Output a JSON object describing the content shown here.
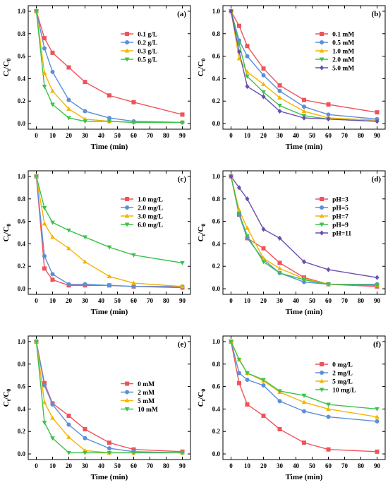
{
  "chart_data": [
    {
      "panel_label": "(a)",
      "type": "line",
      "xlabel": "Time (min)",
      "ylabel_main": "C",
      "ylabel_sub1": "t",
      "ylabel_sep": "/C",
      "ylabel_sub2": "0",
      "xlim": [
        -5,
        95
      ],
      "ylim": [
        -0.05,
        1.05
      ],
      "xticks": [
        0,
        10,
        20,
        30,
        40,
        50,
        60,
        70,
        80,
        90
      ],
      "yticks": [
        0.0,
        0.2,
        0.4,
        0.6,
        0.8,
        1.0
      ],
      "legend": "top-right",
      "x": [
        0,
        5,
        10,
        20,
        30,
        45,
        60,
        90
      ],
      "series": [
        {
          "name": "0.1 g/L",
          "color": "#f0525a",
          "marker": "square",
          "values": [
            1.0,
            0.76,
            0.63,
            0.5,
            0.37,
            0.25,
            0.19,
            0.08
          ]
        },
        {
          "name": "0.2 g/L",
          "color": "#5b8fd8",
          "marker": "circle",
          "values": [
            1.0,
            0.67,
            0.46,
            0.21,
            0.11,
            0.05,
            0.02,
            0.01
          ]
        },
        {
          "name": "0.3 g/L",
          "color": "#f5b400",
          "marker": "triangle-up",
          "values": [
            1.0,
            0.45,
            0.29,
            0.13,
            0.04,
            0.02,
            0.01,
            0.01
          ]
        },
        {
          "name": "0.5 g/L",
          "color": "#3cc24a",
          "marker": "triangle-down",
          "values": [
            1.0,
            0.33,
            0.17,
            0.05,
            0.02,
            0.02,
            0.01,
            0.01
          ]
        }
      ]
    },
    {
      "panel_label": "(b)",
      "type": "line",
      "xlabel": "Time (min)",
      "ylabel_main": "C",
      "ylabel_sub1": "t",
      "ylabel_sep": "/C",
      "ylabel_sub2": "0",
      "xlim": [
        -5,
        95
      ],
      "ylim": [
        -0.05,
        1.05
      ],
      "xticks": [
        0,
        10,
        20,
        30,
        40,
        50,
        60,
        70,
        80,
        90
      ],
      "yticks": [
        0.0,
        0.2,
        0.4,
        0.6,
        0.8,
        1.0
      ],
      "legend": "top-right",
      "x": [
        0,
        5,
        10,
        20,
        30,
        45,
        60,
        90
      ],
      "series": [
        {
          "name": "0.1 mM",
          "color": "#f0525a",
          "marker": "square",
          "values": [
            1.0,
            0.87,
            0.69,
            0.49,
            0.34,
            0.21,
            0.17,
            0.1
          ]
        },
        {
          "name": "0.5 mM",
          "color": "#5b8fd8",
          "marker": "circle",
          "values": [
            1.0,
            0.74,
            0.6,
            0.43,
            0.29,
            0.15,
            0.08,
            0.04
          ]
        },
        {
          "name": "1.0 mM",
          "color": "#f5b400",
          "marker": "triangle-up",
          "values": [
            1.0,
            0.58,
            0.46,
            0.35,
            0.23,
            0.11,
            0.05,
            0.03
          ]
        },
        {
          "name": "2.0 mM",
          "color": "#3cc24a",
          "marker": "triangle-down",
          "values": [
            1.0,
            0.71,
            0.42,
            0.28,
            0.16,
            0.07,
            0.04,
            0.02
          ]
        },
        {
          "name": "5.0 mM",
          "color": "#6a4fb0",
          "marker": "diamond",
          "values": [
            1.0,
            0.64,
            0.33,
            0.24,
            0.11,
            0.05,
            0.04,
            0.02
          ]
        }
      ]
    },
    {
      "panel_label": "(c)",
      "type": "line",
      "xlabel": "Time (min)",
      "ylabel_main": "C",
      "ylabel_sub1": "t",
      "ylabel_sep": "/C",
      "ylabel_sub2": "0",
      "xlim": [
        -5,
        95
      ],
      "ylim": [
        -0.05,
        1.05
      ],
      "xticks": [
        0,
        10,
        20,
        30,
        40,
        50,
        60,
        70,
        80,
        90
      ],
      "yticks": [
        0.0,
        0.2,
        0.4,
        0.6,
        0.8,
        1.0
      ],
      "legend": "top-right",
      "x": [
        0,
        5,
        10,
        20,
        30,
        45,
        60,
        90
      ],
      "series": [
        {
          "name": "1.0 mg/L",
          "color": "#f0525a",
          "marker": "square",
          "values": [
            1.0,
            0.18,
            0.08,
            0.03,
            0.03,
            0.03,
            0.02,
            0.01
          ]
        },
        {
          "name": "2.0 mg/L",
          "color": "#5b8fd8",
          "marker": "circle",
          "values": [
            1.0,
            0.29,
            0.13,
            0.04,
            0.04,
            0.03,
            0.02,
            0.02
          ]
        },
        {
          "name": "3.0 mg/L",
          "color": "#f5b400",
          "marker": "triangle-up",
          "values": [
            1.0,
            0.58,
            0.46,
            0.36,
            0.24,
            0.11,
            0.05,
            0.02
          ]
        },
        {
          "name": "6.0 mg/L",
          "color": "#3cc24a",
          "marker": "triangle-down",
          "values": [
            1.0,
            0.72,
            0.59,
            0.52,
            0.46,
            0.37,
            0.3,
            0.23
          ]
        }
      ]
    },
    {
      "panel_label": "(d)",
      "type": "line",
      "xlabel": "Time (min)",
      "ylabel_main": "C",
      "ylabel_sub1": "t",
      "ylabel_sep": "/C",
      "ylabel_sub2": "0",
      "xlim": [
        -5,
        95
      ],
      "ylim": [
        -0.05,
        1.05
      ],
      "xticks": [
        0,
        10,
        20,
        30,
        40,
        50,
        60,
        70,
        80,
        90
      ],
      "yticks": [
        0.0,
        0.2,
        0.4,
        0.6,
        0.8,
        1.0
      ],
      "legend": "top-right",
      "x": [
        0,
        5,
        10,
        20,
        30,
        45,
        60,
        90
      ],
      "series": [
        {
          "name": "pH=3",
          "color": "#f0525a",
          "marker": "square",
          "values": [
            1.0,
            0.66,
            0.45,
            0.36,
            0.23,
            0.1,
            0.04,
            0.02
          ]
        },
        {
          "name": "pH=5",
          "color": "#5b8fd8",
          "marker": "circle",
          "values": [
            1.0,
            0.66,
            0.45,
            0.26,
            0.14,
            0.06,
            0.04,
            0.04
          ]
        },
        {
          "name": "pH=7",
          "color": "#f5b400",
          "marker": "triangle-up",
          "values": [
            1.0,
            0.7,
            0.54,
            0.27,
            0.18,
            0.09,
            0.04,
            0.03
          ]
        },
        {
          "name": "pH=9",
          "color": "#3cc24a",
          "marker": "triangle-down",
          "values": [
            1.0,
            0.67,
            0.47,
            0.24,
            0.14,
            0.08,
            0.04,
            0.03
          ]
        },
        {
          "name": "pH=11",
          "color": "#6a4fb0",
          "marker": "diamond",
          "values": [
            1.0,
            0.9,
            0.8,
            0.53,
            0.45,
            0.24,
            0.17,
            0.1
          ]
        }
      ]
    },
    {
      "panel_label": "(e)",
      "type": "line",
      "xlabel": "Time (min)",
      "ylabel_main": "C",
      "ylabel_sub1": "t",
      "ylabel_sep": "/C",
      "ylabel_sub2": "0",
      "xlim": [
        -5,
        95
      ],
      "ylim": [
        -0.05,
        1.05
      ],
      "xticks": [
        0,
        10,
        20,
        30,
        40,
        50,
        60,
        70,
        80,
        90
      ],
      "yticks": [
        0.0,
        0.2,
        0.4,
        0.6,
        0.8,
        1.0
      ],
      "legend": "center-right",
      "x": [
        0,
        5,
        10,
        20,
        30,
        45,
        60,
        90
      ],
      "series": [
        {
          "name": "0 mM",
          "color": "#f0525a",
          "marker": "square",
          "values": [
            1.0,
            0.63,
            0.45,
            0.34,
            0.22,
            0.1,
            0.04,
            0.02
          ]
        },
        {
          "name": "2 mM",
          "color": "#5b8fd8",
          "marker": "circle",
          "values": [
            1.0,
            0.61,
            0.44,
            0.26,
            0.14,
            0.05,
            0.02,
            0.01
          ]
        },
        {
          "name": "5 mM",
          "color": "#f5b400",
          "marker": "triangle-up",
          "values": [
            1.0,
            0.46,
            0.32,
            0.15,
            0.03,
            0.01,
            0.01,
            0.01
          ]
        },
        {
          "name": "10 mM",
          "color": "#3cc24a",
          "marker": "triangle-down",
          "values": [
            1.0,
            0.28,
            0.14,
            0.01,
            0.01,
            0.01,
            0.01,
            0.01
          ]
        }
      ]
    },
    {
      "panel_label": "(f)",
      "type": "line",
      "xlabel": "Time (min)",
      "ylabel_main": "C",
      "ylabel_sub1": "t",
      "ylabel_sep": "/C",
      "ylabel_sub2": "0",
      "xlim": [
        -5,
        95
      ],
      "ylim": [
        -0.05,
        1.05
      ],
      "xticks": [
        0,
        10,
        20,
        30,
        40,
        50,
        60,
        70,
        80,
        90
      ],
      "yticks": [
        0.0,
        0.2,
        0.4,
        0.6,
        0.8,
        1.0
      ],
      "legend": "top-right",
      "x": [
        0,
        5,
        10,
        20,
        30,
        45,
        60,
        90
      ],
      "series": [
        {
          "name": "0 mg/L",
          "color": "#f0525a",
          "marker": "square",
          "values": [
            1.0,
            0.63,
            0.44,
            0.34,
            0.22,
            0.1,
            0.04,
            0.02
          ]
        },
        {
          "name": "2 mg/L",
          "color": "#5b8fd8",
          "marker": "circle",
          "values": [
            1.0,
            0.72,
            0.66,
            0.61,
            0.47,
            0.38,
            0.33,
            0.29
          ]
        },
        {
          "name": "5 mg/L",
          "color": "#f5b400",
          "marker": "triangle-up",
          "values": [
            1.0,
            0.84,
            0.72,
            0.65,
            0.55,
            0.46,
            0.4,
            0.33
          ]
        },
        {
          "name": "10 mg/L",
          "color": "#3cc24a",
          "marker": "triangle-down",
          "values": [
            1.0,
            0.84,
            0.72,
            0.66,
            0.56,
            0.52,
            0.44,
            0.4
          ]
        }
      ]
    }
  ]
}
